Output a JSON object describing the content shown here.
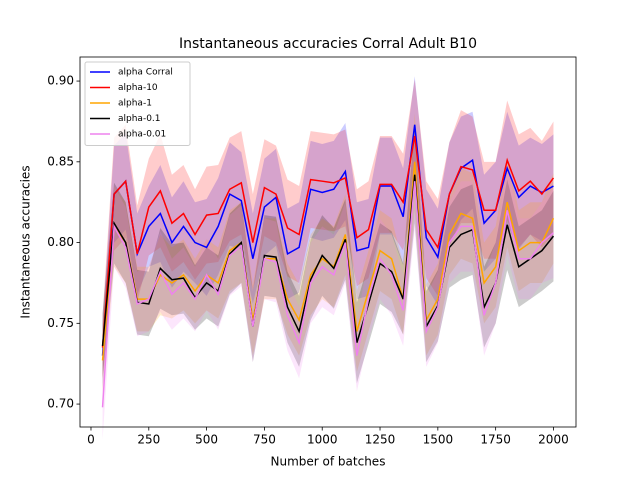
{
  "chart_data": {
    "type": "line",
    "title": "Instantaneous accuracies Corral Adult B10",
    "x_label": "Number of batches",
    "y_label": "Instantaneous accuracies",
    "x": [
      50,
      100,
      150,
      200,
      250,
      300,
      350,
      400,
      450,
      500,
      550,
      600,
      650,
      700,
      750,
      800,
      850,
      900,
      950,
      1000,
      1050,
      1100,
      1150,
      1200,
      1250,
      1300,
      1350,
      1400,
      1450,
      1500,
      1550,
      1600,
      1650,
      1700,
      1750,
      1800,
      1850,
      1900,
      1950,
      2000
    ],
    "xlim": [
      -47.5,
      2097.5
    ],
    "xticks": [
      0,
      250,
      500,
      750,
      1000,
      1250,
      1500,
      1750,
      2000
    ],
    "ylim": [
      0.6858,
      0.9149
    ],
    "yticks": [
      {
        "value": 0.7,
        "label": "0.70"
      },
      {
        "value": 0.75,
        "label": "0.75"
      },
      {
        "value": 0.8,
        "label": "0.80"
      },
      {
        "value": 0.85,
        "label": "0.85"
      },
      {
        "value": 0.9,
        "label": "0.90"
      }
    ],
    "legend": "upper left",
    "series": [
      {
        "name": "alpha Corral",
        "color": "#0000ff",
        "values": [
          0.73,
          0.83,
          0.838,
          0.793,
          0.81,
          0.818,
          0.8,
          0.81,
          0.8,
          0.797,
          0.81,
          0.83,
          0.826,
          0.79,
          0.822,
          0.828,
          0.793,
          0.797,
          0.833,
          0.831,
          0.833,
          0.844,
          0.795,
          0.797,
          0.835,
          0.835,
          0.816,
          0.873,
          0.803,
          0.791,
          0.83,
          0.846,
          0.851,
          0.812,
          0.82,
          0.846,
          0.828,
          0.835,
          0.831,
          0.835
        ],
        "errors": [
          0.02,
          0.03,
          0.03,
          0.025,
          0.025,
          0.03,
          0.028,
          0.028,
          0.025,
          0.03,
          0.03,
          0.032,
          0.03,
          0.028,
          0.03,
          0.03,
          0.028,
          0.028,
          0.03,
          0.03,
          0.03,
          0.03,
          0.03,
          0.03,
          0.03,
          0.03,
          0.03,
          0.03,
          0.03,
          0.03,
          0.032,
          0.032,
          0.03,
          0.03,
          0.03,
          0.035,
          0.032,
          0.03,
          0.03,
          0.032
        ]
      },
      {
        "name": "alpha-10",
        "color": "#ff0000",
        "values": [
          0.735,
          0.83,
          0.838,
          0.793,
          0.822,
          0.832,
          0.812,
          0.818,
          0.805,
          0.817,
          0.818,
          0.833,
          0.837,
          0.8,
          0.834,
          0.83,
          0.809,
          0.805,
          0.839,
          0.838,
          0.837,
          0.84,
          0.803,
          0.808,
          0.836,
          0.836,
          0.825,
          0.866,
          0.808,
          0.797,
          0.83,
          0.847,
          0.845,
          0.82,
          0.82,
          0.851,
          0.832,
          0.838,
          0.83,
          0.84
        ],
        "errors": [
          0.02,
          0.035,
          0.035,
          0.03,
          0.03,
          0.035,
          0.03,
          0.03,
          0.028,
          0.03,
          0.03,
          0.032,
          0.032,
          0.03,
          0.03,
          0.03,
          0.03,
          0.03,
          0.03,
          0.03,
          0.03,
          0.03,
          0.03,
          0.03,
          0.03,
          0.03,
          0.03,
          0.035,
          0.03,
          0.03,
          0.032,
          0.035,
          0.033,
          0.03,
          0.03,
          0.037,
          0.035,
          0.033,
          0.033,
          0.035
        ]
      },
      {
        "name": "alpha-1",
        "color": "#ffa500",
        "values": [
          0.727,
          0.81,
          0.8,
          0.765,
          0.765,
          0.78,
          0.775,
          0.78,
          0.77,
          0.78,
          0.775,
          0.795,
          0.8,
          0.752,
          0.79,
          0.79,
          0.765,
          0.752,
          0.78,
          0.79,
          0.785,
          0.805,
          0.745,
          0.77,
          0.795,
          0.79,
          0.765,
          0.85,
          0.752,
          0.765,
          0.805,
          0.818,
          0.815,
          0.775,
          0.785,
          0.825,
          0.795,
          0.8,
          0.8,
          0.815
        ],
        "errors": [
          0.02,
          0.025,
          0.025,
          0.02,
          0.02,
          0.025,
          0.022,
          0.022,
          0.02,
          0.022,
          0.022,
          0.025,
          0.025,
          0.022,
          0.025,
          0.025,
          0.022,
          0.022,
          0.025,
          0.025,
          0.025,
          0.025,
          0.025,
          0.025,
          0.025,
          0.025,
          0.022,
          0.03,
          0.022,
          0.022,
          0.025,
          0.028,
          0.028,
          0.025,
          0.025,
          0.028,
          0.025,
          0.025,
          0.025,
          0.028
        ]
      },
      {
        "name": "alpha-0.1",
        "color": "#000000",
        "values": [
          0.736,
          0.812,
          0.8,
          0.763,
          0.762,
          0.784,
          0.777,
          0.778,
          0.766,
          0.775,
          0.77,
          0.793,
          0.8,
          0.748,
          0.792,
          0.791,
          0.76,
          0.745,
          0.777,
          0.792,
          0.784,
          0.802,
          0.738,
          0.762,
          0.787,
          0.782,
          0.765,
          0.842,
          0.748,
          0.761,
          0.797,
          0.805,
          0.808,
          0.76,
          0.775,
          0.811,
          0.785,
          0.79,
          0.795,
          0.804
        ],
        "errors": [
          0.02,
          0.025,
          0.025,
          0.02,
          0.02,
          0.025,
          0.022,
          0.022,
          0.02,
          0.022,
          0.022,
          0.025,
          0.025,
          0.022,
          0.025,
          0.025,
          0.022,
          0.022,
          0.025,
          0.025,
          0.025,
          0.025,
          0.025,
          0.025,
          0.025,
          0.025,
          0.022,
          0.03,
          0.022,
          0.022,
          0.025,
          0.028,
          0.028,
          0.025,
          0.025,
          0.028,
          0.025,
          0.025,
          0.025,
          0.028
        ]
      },
      {
        "name": "alpha-0.01",
        "color": "#ee82ee",
        "values": [
          0.698,
          0.81,
          0.797,
          0.762,
          0.765,
          0.782,
          0.768,
          0.775,
          0.765,
          0.78,
          0.768,
          0.792,
          0.798,
          0.748,
          0.79,
          0.788,
          0.755,
          0.738,
          0.775,
          0.785,
          0.78,
          0.8,
          0.73,
          0.765,
          0.79,
          0.78,
          0.758,
          0.838,
          0.745,
          0.76,
          0.8,
          0.81,
          0.81,
          0.755,
          0.775,
          0.82,
          0.79,
          0.79,
          0.8,
          0.806
        ],
        "errors": [
          0.02,
          0.025,
          0.025,
          0.02,
          0.02,
          0.025,
          0.022,
          0.022,
          0.02,
          0.022,
          0.022,
          0.025,
          0.025,
          0.022,
          0.025,
          0.025,
          0.022,
          0.022,
          0.025,
          0.025,
          0.025,
          0.025,
          0.022,
          0.025,
          0.025,
          0.025,
          0.022,
          0.03,
          0.022,
          0.022,
          0.025,
          0.028,
          0.028,
          0.025,
          0.025,
          0.028,
          0.025,
          0.025,
          0.025,
          0.028
        ]
      }
    ]
  }
}
